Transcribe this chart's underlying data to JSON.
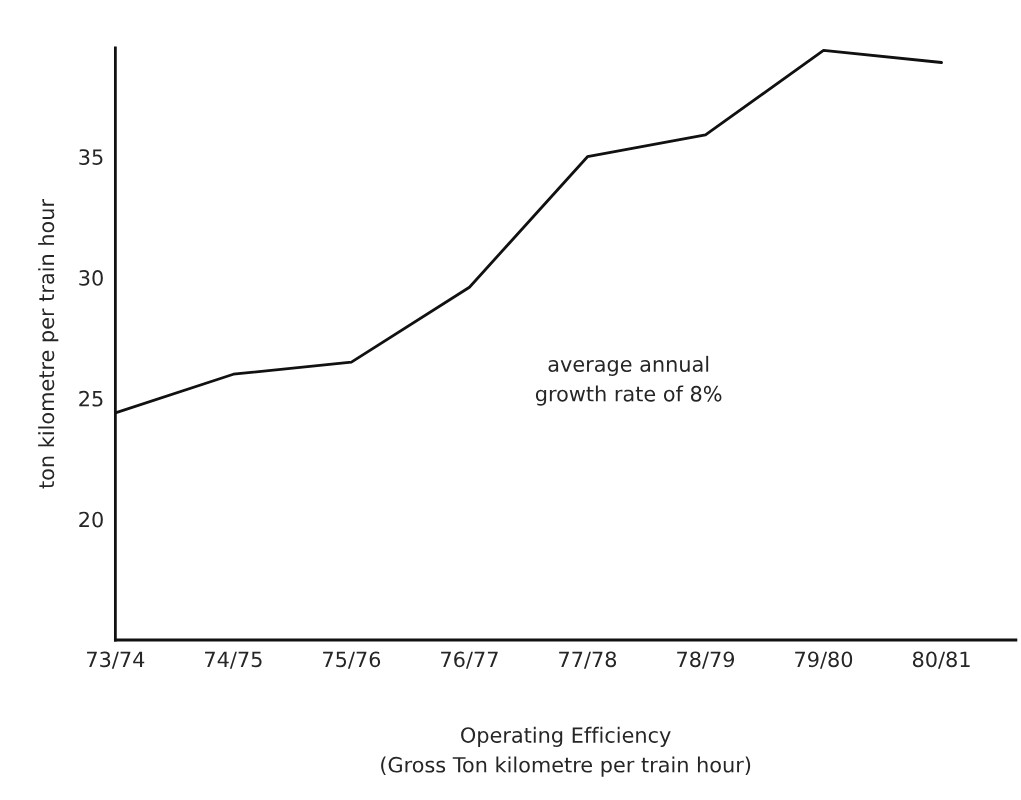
{
  "chart_data": {
    "type": "line",
    "xlabel": "Operating Efficiency\n(Gross Ton kilometre per train hour)",
    "ylabel": "ton kilometre per train hour",
    "categories": [
      "73/74",
      "74/75",
      "75/76",
      "76/77",
      "77/78",
      "78/79",
      "79/80",
      "80/81"
    ],
    "series": [
      {
        "color": "#111111",
        "values": [
          24.4,
          26.0,
          26.5,
          29.6,
          35.0,
          35.9,
          39.4,
          38.9
        ]
      }
    ],
    "ylim": [
      15,
      39.5
    ],
    "yticks": [
      20,
      25,
      30,
      35
    ],
    "annotations": [
      {
        "text": "average annual\ngrowth rate of 8%"
      }
    ],
    "grid": false,
    "legend": false,
    "marker": "none",
    "line_style": "solid"
  }
}
